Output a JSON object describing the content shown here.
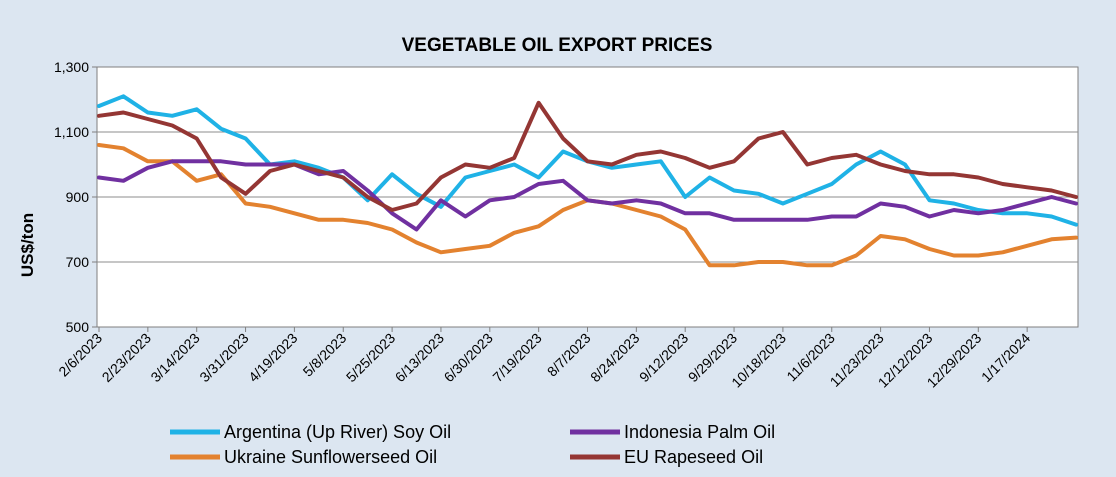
{
  "chart_data": {
    "type": "line",
    "title": "VEGETABLE OIL EXPORT PRICES",
    "xlabel": "",
    "ylabel": "US$/ton",
    "ylim": [
      500,
      1300
    ],
    "yticks": [
      500,
      700,
      900,
      1100,
      1300
    ],
    "ytick_labels": [
      "500",
      "700",
      "900",
      "1,100",
      "1,300"
    ],
    "grid": true,
    "legend_position": "bottom",
    "x_labels": [
      "2/6/2023",
      "2/23/2023",
      "3/14/2023",
      "3/31/2023",
      "4/19/2023",
      "5/8/2023",
      "5/25/2023",
      "6/13/2023",
      "6/30/2023",
      "7/19/2023",
      "8/7/2023",
      "8/24/2023",
      "9/12/2023",
      "9/29/2023",
      "10/18/2023",
      "11/6/2023",
      "11/23/2023",
      "12/12/2023",
      "12/29/2023",
      "1/17/2024"
    ],
    "x": [
      "2/6/2023",
      "2/15/2023",
      "2/23/2023",
      "3/3/2023",
      "3/14/2023",
      "3/22/2023",
      "3/31/2023",
      "4/10/2023",
      "4/19/2023",
      "4/27/2023",
      "5/8/2023",
      "5/16/2023",
      "5/25/2023",
      "6/2/2023",
      "6/13/2023",
      "6/21/2023",
      "6/30/2023",
      "7/10/2023",
      "7/19/2023",
      "7/27/2023",
      "8/7/2023",
      "8/15/2023",
      "8/24/2023",
      "9/1/2023",
      "9/12/2023",
      "9/20/2023",
      "9/29/2023",
      "10/9/2023",
      "10/18/2023",
      "10/26/2023",
      "11/6/2023",
      "11/14/2023",
      "11/23/2023",
      "12/1/2023",
      "12/12/2023",
      "12/20/2023",
      "12/29/2023",
      "1/8/2024",
      "1/17/2024",
      "1/25/2024",
      "2/2/2024"
    ],
    "series": [
      {
        "name": "Argentina (Up River) Soy Oil",
        "color": "#1fb2e6",
        "values": [
          1180,
          1210,
          1160,
          1150,
          1170,
          1110,
          1080,
          1000,
          1010,
          990,
          960,
          890,
          970,
          910,
          870,
          960,
          980,
          1000,
          960,
          1040,
          1010,
          990,
          1000,
          1010,
          900,
          960,
          920,
          910,
          880,
          910,
          940,
          1000,
          1040,
          1000,
          890,
          880,
          860,
          850,
          850,
          840,
          815
        ]
      },
      {
        "name": "Indonesia Palm Oil",
        "color": "#7030a0",
        "values": [
          960,
          950,
          990,
          1010,
          1010,
          1010,
          1000,
          1000,
          1000,
          970,
          980,
          920,
          850,
          800,
          890,
          840,
          890,
          900,
          940,
          950,
          890,
          880,
          890,
          880,
          850,
          850,
          830,
          830,
          830,
          830,
          840,
          840,
          880,
          870,
          840,
          860,
          850,
          860,
          880,
          900,
          880
        ]
      },
      {
        "name": "Ukraine Sunflowerseed Oil",
        "color": "#e3822f",
        "values": [
          1060,
          1050,
          1010,
          1010,
          950,
          970,
          880,
          870,
          850,
          830,
          830,
          820,
          800,
          760,
          730,
          740,
          750,
          790,
          810,
          860,
          890,
          880,
          860,
          840,
          800,
          690,
          690,
          700,
          700,
          690,
          690,
          720,
          780,
          770,
          740,
          720,
          720,
          730,
          750,
          770,
          775
        ]
      },
      {
        "name": "EU Rapeseed Oil",
        "color": "#943634",
        "values": [
          1150,
          1160,
          1140,
          1120,
          1080,
          960,
          910,
          980,
          1000,
          980,
          960,
          900,
          860,
          880,
          960,
          1000,
          990,
          1020,
          1190,
          1080,
          1010,
          1000,
          1030,
          1040,
          1020,
          990,
          1010,
          1080,
          1100,
          1000,
          1020,
          1030,
          1000,
          980,
          970,
          970,
          960,
          940,
          930,
          920,
          900
        ]
      }
    ]
  }
}
